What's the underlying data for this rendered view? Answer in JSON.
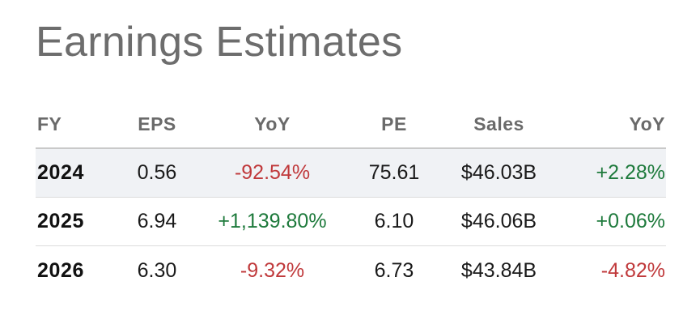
{
  "title": "Earnings Estimates",
  "columns": [
    "FY",
    "EPS",
    "YoY",
    "PE",
    "Sales",
    "YoY"
  ],
  "rows": [
    {
      "fy": "2024",
      "eps": "0.56",
      "eps_yoy": "-92.54%",
      "pe": "75.61",
      "sales": "$46.03B",
      "sales_yoy": "+2.28%"
    },
    {
      "fy": "2025",
      "eps": "6.94",
      "eps_yoy": "+1,139.80%",
      "pe": "6.10",
      "sales": "$46.06B",
      "sales_yoy": "+0.06%"
    },
    {
      "fy": "2026",
      "eps": "6.30",
      "eps_yoy": "-9.32%",
      "pe": "6.73",
      "sales": "$43.84B",
      "sales_yoy": "-4.82%"
    }
  ],
  "colors": {
    "title": "#6d6d6d",
    "header_text": "#6a6a6a",
    "negative": "#c0393b",
    "positive": "#1e7a3c",
    "shaded_row": "#f0f2f5",
    "divider": "#dcdcdc"
  }
}
